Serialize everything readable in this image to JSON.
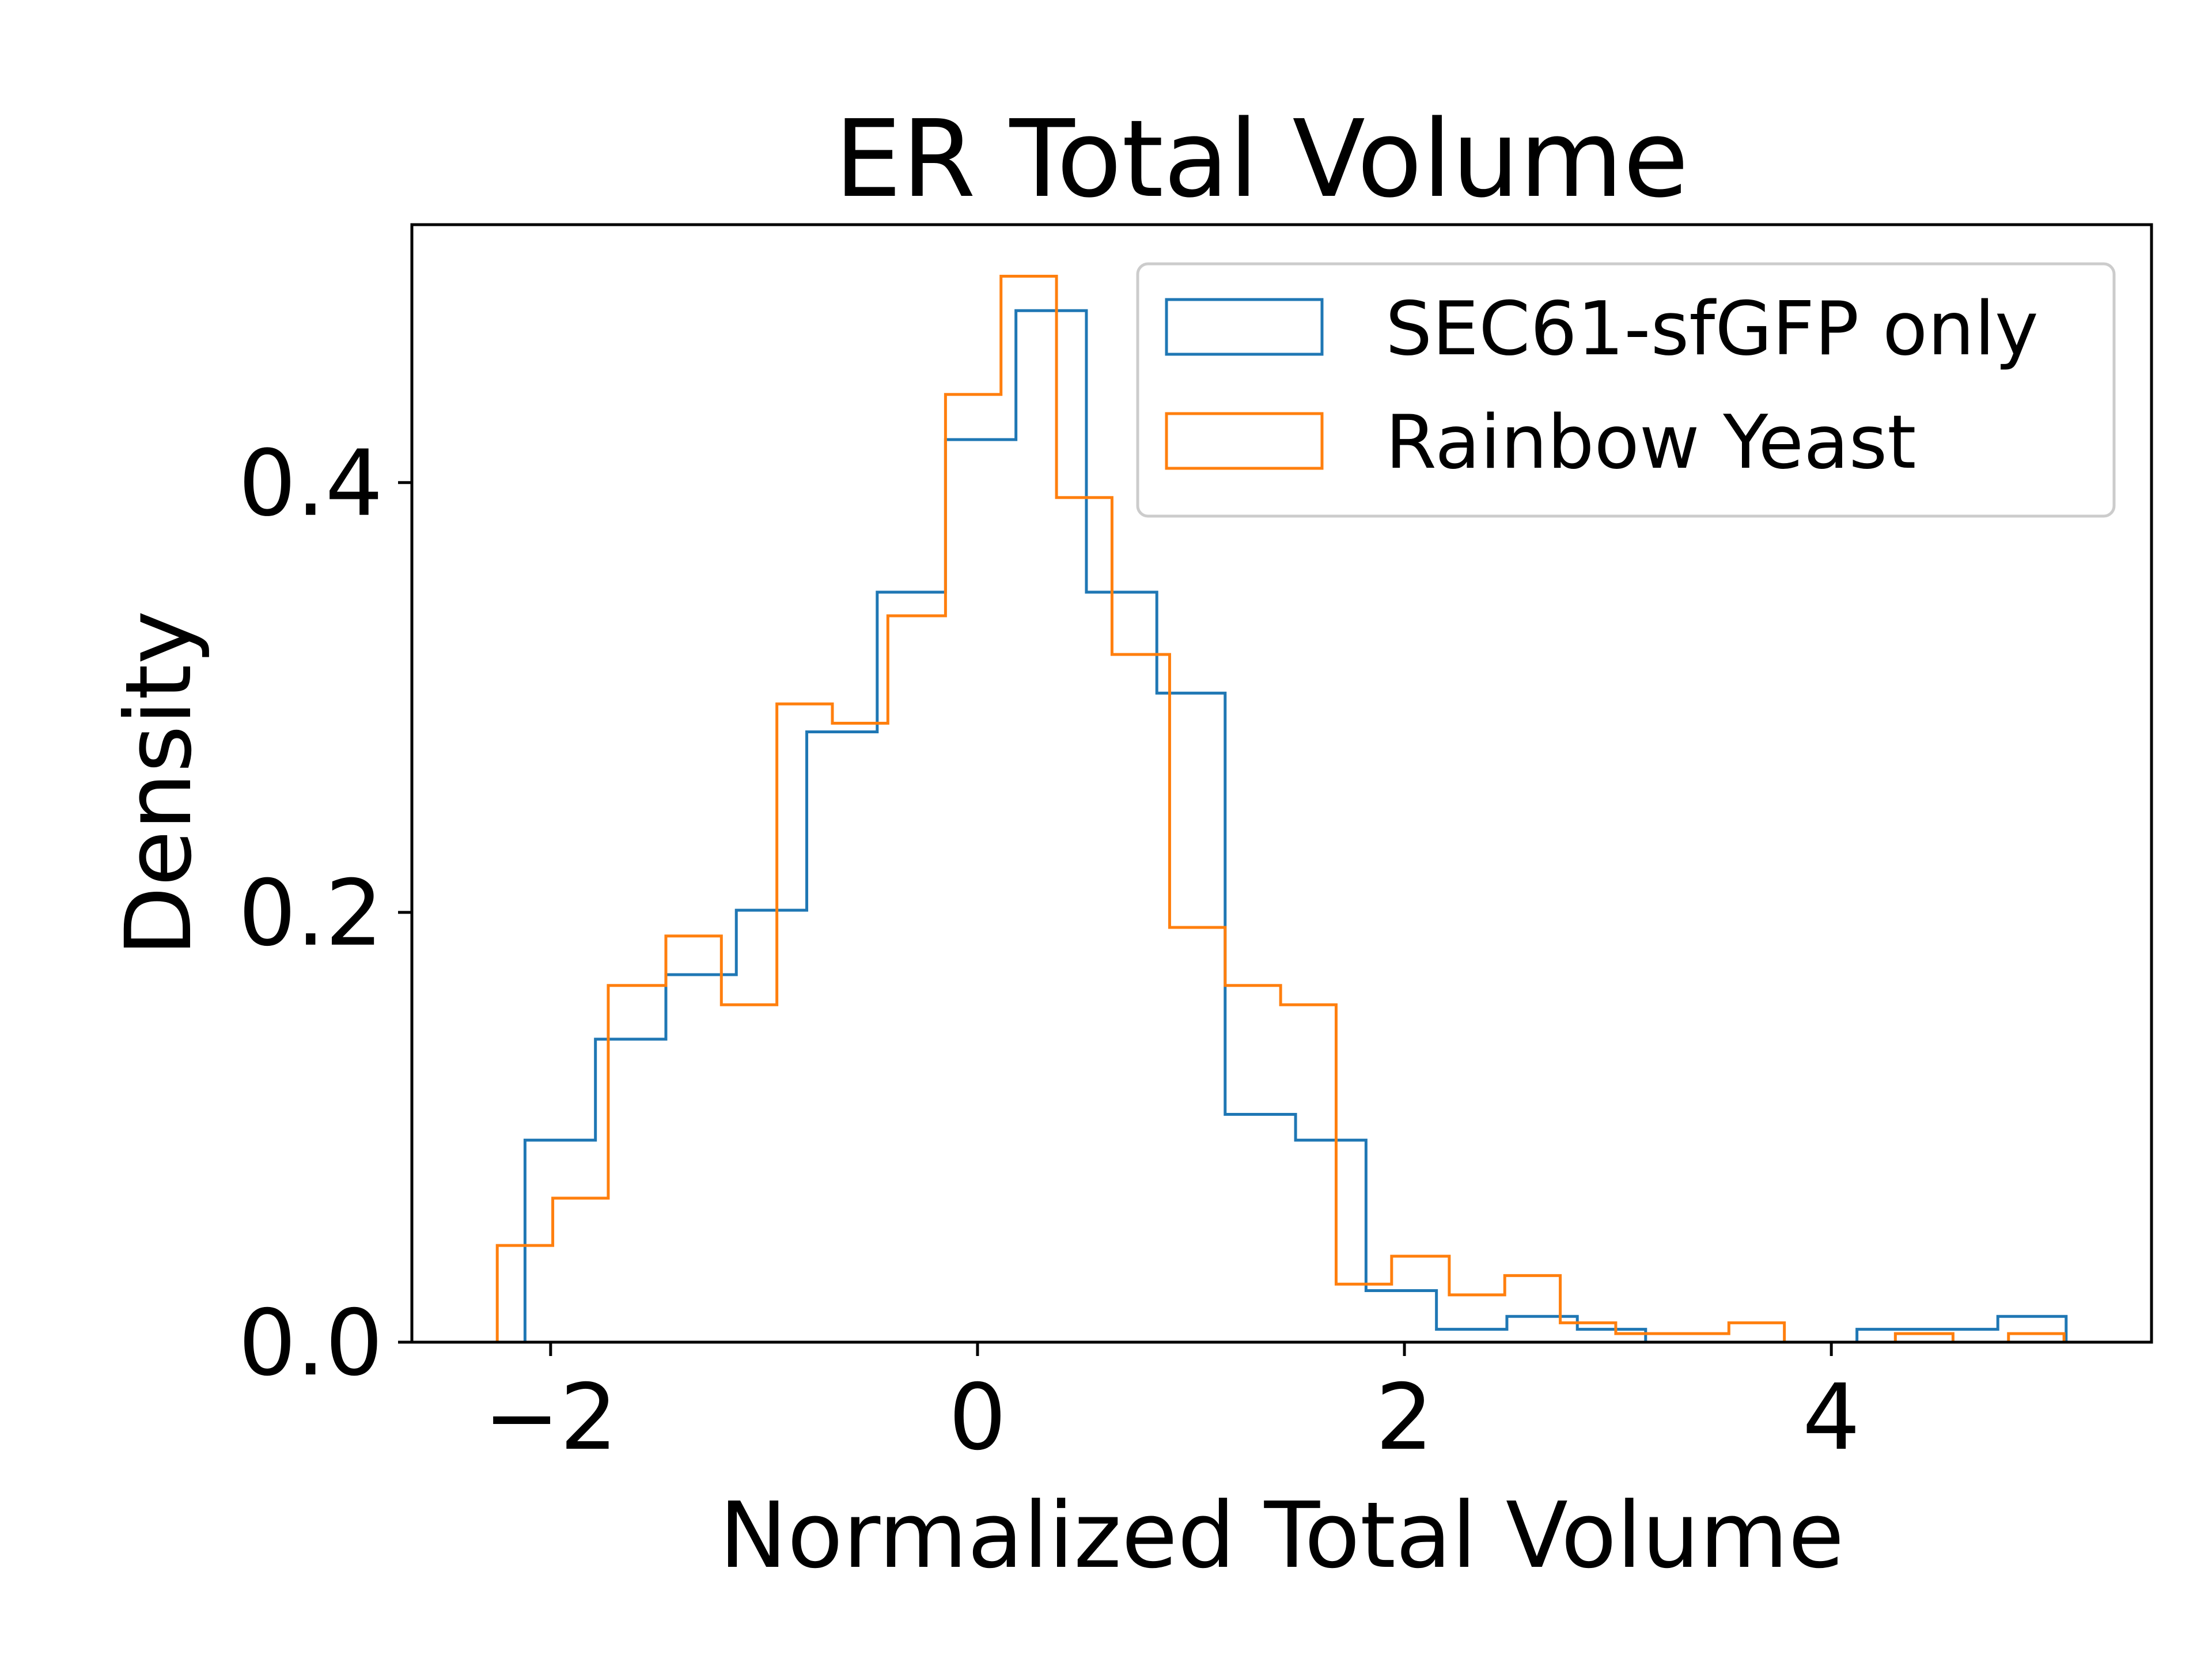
{
  "chart_data": {
    "type": "histogram",
    "title": "ER Total Volume",
    "xlabel": "Normalized Total Volume",
    "ylabel": "Density",
    "xlim": [
      -2.65,
      5.5
    ],
    "ylim": [
      0,
      0.52
    ],
    "x_ticks": [
      {
        "value": -2,
        "label": "−2"
      },
      {
        "value": 0,
        "label": "0"
      },
      {
        "value": 2,
        "label": "2"
      },
      {
        "value": 4,
        "label": "4"
      }
    ],
    "y_ticks": [
      {
        "value": 0.0,
        "label": "0.0"
      },
      {
        "value": 0.2,
        "label": "0.2"
      },
      {
        "value": 0.4,
        "label": "0.4"
      }
    ],
    "grid": false,
    "legend": "top-right",
    "series": [
      {
        "name": "SEC61-sfGFP only",
        "color": "#1f77b4",
        "bin_edges": [
          -2.12,
          -1.79,
          -1.46,
          -1.13,
          -0.8,
          -0.47,
          -0.15,
          0.18,
          0.51,
          0.84,
          1.16,
          1.49,
          1.82,
          2.15,
          2.48,
          2.81,
          3.13,
          3.46,
          3.79,
          4.12,
          4.45,
          4.78,
          5.1
        ],
        "values": [
          0.094,
          0.141,
          0.171,
          0.201,
          0.284,
          0.349,
          0.42,
          0.48,
          0.349,
          0.302,
          0.106,
          0.094,
          0.024,
          0.006,
          0.012,
          0.006,
          0.0,
          0.0,
          0.0,
          0.006,
          0.006,
          0.012
        ]
      },
      {
        "name": "Rainbow Yeast",
        "color": "#ff7f0e",
        "bin_edges": [
          -2.25,
          -1.99,
          -1.73,
          -1.46,
          -1.2,
          -0.94,
          -0.68,
          -0.42,
          -0.15,
          0.11,
          0.37,
          0.63,
          0.9,
          1.16,
          1.42,
          1.68,
          1.94,
          2.21,
          2.47,
          2.73,
          2.99,
          3.26,
          3.52,
          3.78,
          4.04,
          4.3,
          4.57,
          4.83,
          5.09
        ],
        "values": [
          0.045,
          0.067,
          0.166,
          0.189,
          0.157,
          0.297,
          0.288,
          0.338,
          0.441,
          0.496,
          0.393,
          0.32,
          0.193,
          0.166,
          0.157,
          0.027,
          0.04,
          0.022,
          0.031,
          0.009,
          0.004,
          0.004,
          0.009,
          0.0,
          0.0,
          0.004,
          0.0,
          0.004
        ]
      }
    ]
  }
}
